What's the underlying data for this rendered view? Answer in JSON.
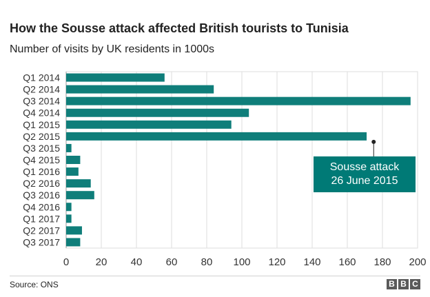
{
  "chart_data": {
    "type": "bar",
    "orientation": "horizontal",
    "title": "How the Sousse attack affected British tourists to Tunisia",
    "subtitle": "Number of visits by UK residents in 1000s",
    "categories": [
      "Q1 2014",
      "Q2 2014",
      "Q3 2014",
      "Q4 2014",
      "Q1 2015",
      "Q2 2015",
      "Q3 2015",
      "Q4 2015",
      "Q1 2016",
      "Q2 2016",
      "Q3 2016",
      "Q4 2016",
      "Q1 2017",
      "Q2 2017",
      "Q3 2017"
    ],
    "values": [
      56,
      84,
      196,
      104,
      94,
      171,
      3,
      8,
      7,
      14,
      16,
      3,
      3,
      9,
      8
    ],
    "x_ticks": [
      0,
      20,
      40,
      60,
      80,
      100,
      120,
      140,
      160,
      180,
      200
    ],
    "xlim": [
      0,
      200
    ],
    "grid": true,
    "bar_color": "#0f7e7a",
    "annotation": {
      "lines": [
        "Sousse attack",
        "26 June 2015"
      ],
      "category": "Q2 2015",
      "x_value": 175,
      "color": "#007a76"
    }
  },
  "footer": {
    "source": "Source: ONS",
    "logo_letters": [
      "B",
      "B",
      "C"
    ]
  }
}
